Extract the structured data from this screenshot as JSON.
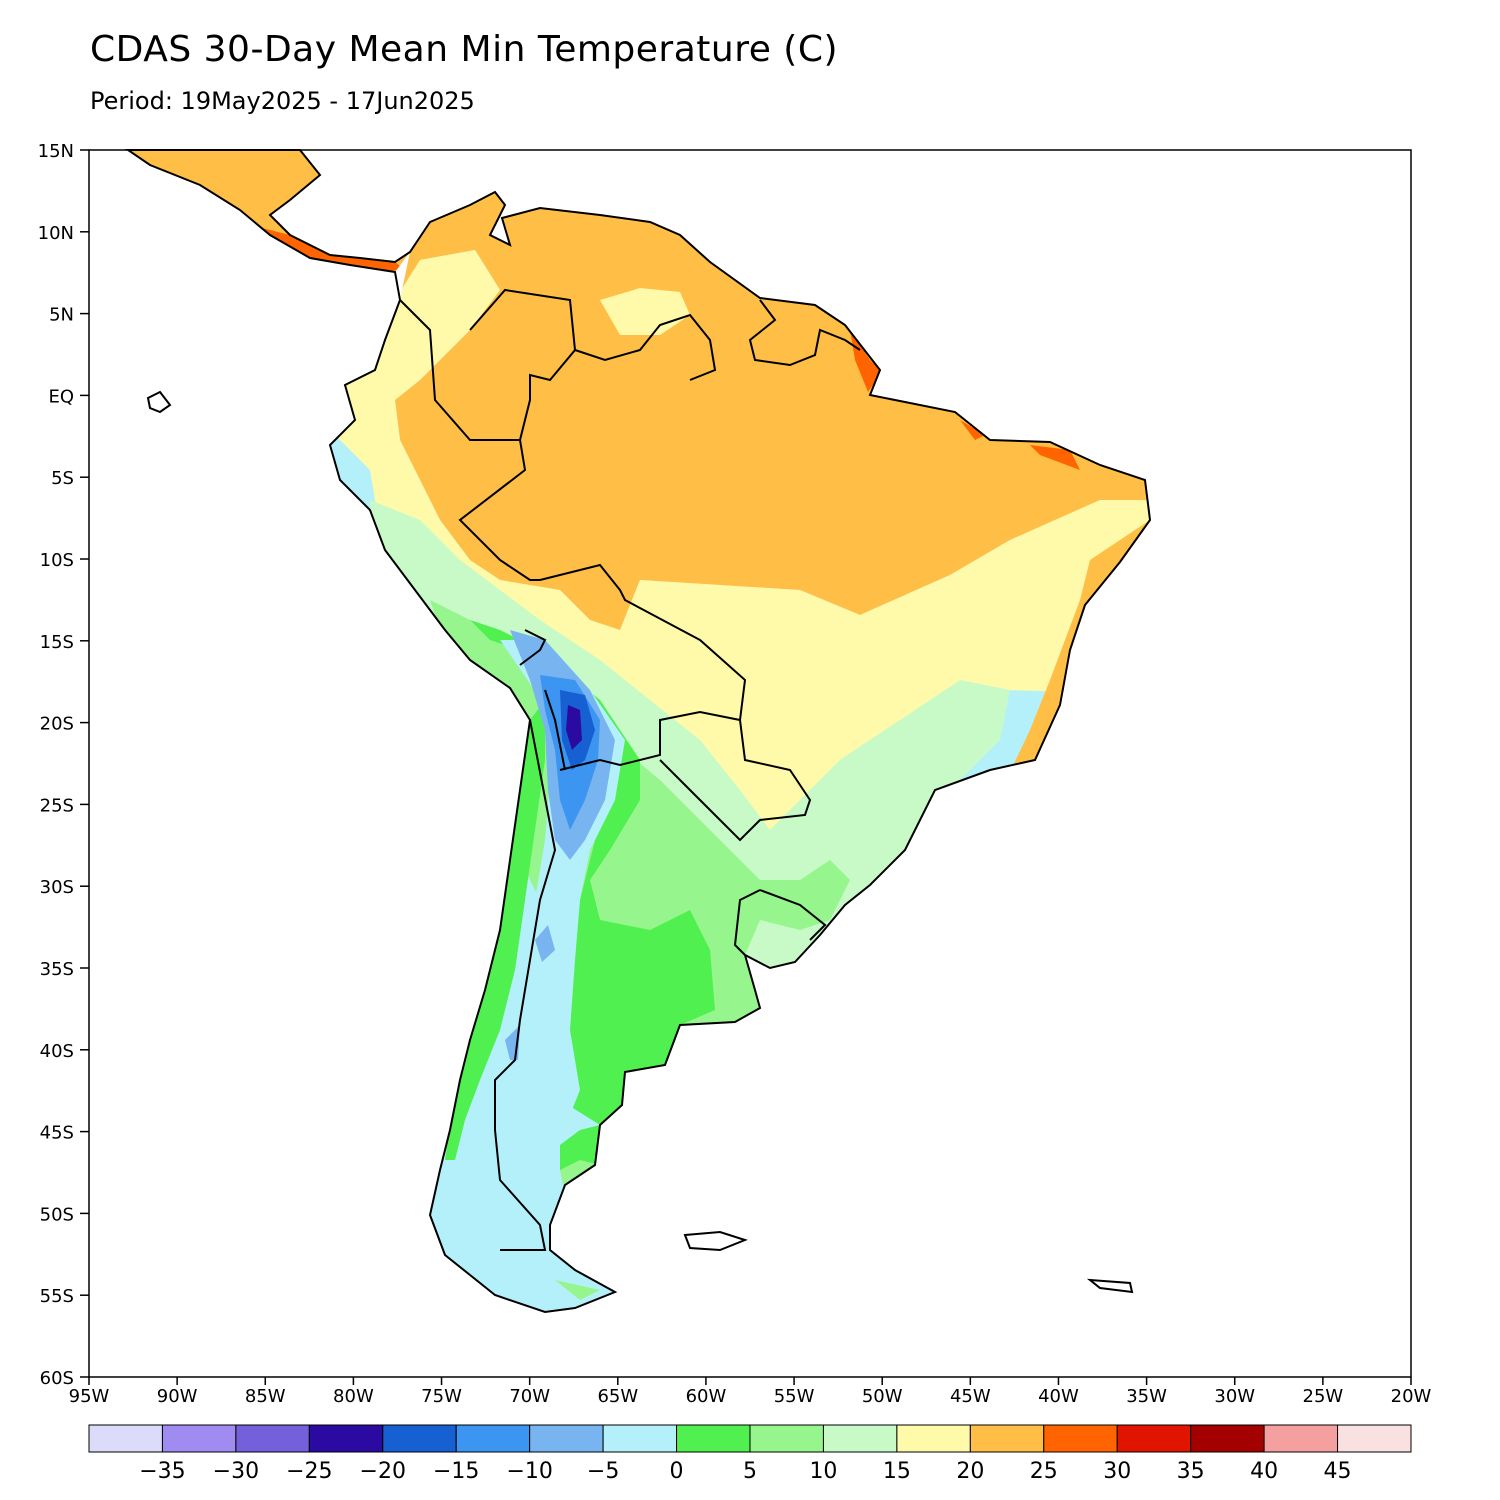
{
  "title": "CDAS 30-Day Mean Min Temperature (C)",
  "subtitle": "Period: 19May2025 - 17Jun2025",
  "map": {
    "lon_range": [
      -95,
      -20
    ],
    "lat_range": [
      -60,
      15
    ],
    "lat_labels": [
      "15N",
      "10N",
      "5N",
      "EQ",
      "5S",
      "10S",
      "15S",
      "20S",
      "25S",
      "30S",
      "35S",
      "40S",
      "45S",
      "50S",
      "55S",
      "60S"
    ],
    "lon_labels": [
      "95W",
      "90W",
      "85W",
      "80W",
      "75W",
      "70W",
      "65W",
      "60W",
      "55W",
      "50W",
      "45W",
      "40W",
      "35W",
      "30W",
      "25W",
      "20W"
    ]
  },
  "colorbar": {
    "labels": [
      "-35",
      "-30",
      "-25",
      "-20",
      "-15",
      "-10",
      "-5",
      "0",
      "5",
      "10",
      "15",
      "20",
      "25",
      "30",
      "35",
      "40",
      "45"
    ],
    "colors": [
      "#dcdcfa",
      "#a08cf0",
      "#7560dc",
      "#2a0aa0",
      "#1660d2",
      "#3c95f0",
      "#78b4f0",
      "#b4f0fa",
      "#50f050",
      "#96f58c",
      "#c8fac8",
      "#fffaaa",
      "#ffbe46",
      "#ff6400",
      "#e11400",
      "#a50000",
      "#f5a0a0",
      "#fae1e1"
    ]
  }
}
